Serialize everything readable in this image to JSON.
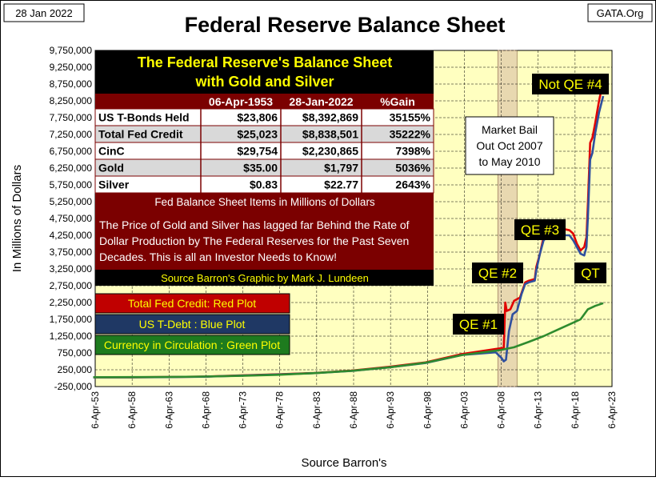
{
  "header": {
    "date": "28 Jan 2022",
    "title": "Federal Reserve Balance Sheet",
    "source_site": "GATA.Org"
  },
  "chart_data": {
    "type": "line",
    "ylabel": "In Millions of Dollars",
    "xlabel": "Source Barron's",
    "ylim": [
      -250000,
      9750000
    ],
    "yticks": [
      "9,750,000",
      "9,250,000",
      "8,750,000",
      "8,250,000",
      "7,750,000",
      "7,250,000",
      "6,750,000",
      "6,250,000",
      "5,750,000",
      "5,250,000",
      "4,750,000",
      "4,250,000",
      "3,750,000",
      "3,250,000",
      "2,750,000",
      "2,250,000",
      "1,750,000",
      "1,250,000",
      "750,000",
      "250,000",
      "-250,000"
    ],
    "xticks": [
      "6-Apr-53",
      "6-Apr-58",
      "6-Apr-63",
      "6-Apr-68",
      "6-Apr-73",
      "6-Apr-78",
      "6-Apr-83",
      "6-Apr-88",
      "6-Apr-93",
      "6-Apr-98",
      "6-Apr-03",
      "6-Apr-08",
      "6-Apr-13",
      "6-Apr-18",
      "6-Apr-23"
    ],
    "colors": {
      "total_fed_credit": "#e00000",
      "us_tdebt": "#2f4f9e",
      "currency": "#2e8b2e",
      "plot_bg": "#ffffc0",
      "shade": "#e8d8b0"
    },
    "shaded_region": {
      "from": 2007.8,
      "to": 2010.4
    },
    "series": [
      {
        "key": "red",
        "x": [
          1953,
          1958,
          1963,
          1968,
          1973,
          1978,
          1983,
          1988,
          1993,
          1998,
          2003,
          2007.5,
          2008.6,
          2008.8,
          2009,
          2009.5,
          2010,
          2010.8,
          2011.5,
          2012,
          2012.8,
          2013,
          2013.5,
          2014,
          2014.8,
          2015.5,
          2016.5,
          2017.5,
          2018,
          2018.5,
          2019,
          2019.5,
          2019.8,
          2020,
          2020.3,
          2020.6,
          2021,
          2021.5,
          2022.07
        ],
        "values": [
          25023,
          27000,
          33000,
          45000,
          80000,
          115000,
          155000,
          225000,
          335000,
          470000,
          720000,
          870000,
          900000,
          2250000,
          2000000,
          2050000,
          2300000,
          2400000,
          2850000,
          2900000,
          2950000,
          3300000,
          3700000,
          4200000,
          4450000,
          4450000,
          4450000,
          4400000,
          4300000,
          4000000,
          3800000,
          3900000,
          4200000,
          5200000,
          7000000,
          7150000,
          7600000,
          8250000,
          8838501
        ]
      },
      {
        "key": "blue",
        "x": [
          1953,
          1958,
          1963,
          1968,
          1973,
          1978,
          1983,
          1988,
          1993,
          1998,
          2003,
          2007.5,
          2008.3,
          2008.6,
          2008.9,
          2009.3,
          2009.8,
          2010.4,
          2011,
          2011.5,
          2012,
          2012.8,
          2013,
          2013.5,
          2014,
          2014.8,
          2015.5,
          2016.5,
          2017.5,
          2018,
          2018.5,
          2019,
          2019.5,
          2019.8,
          2020,
          2020.3,
          2020.6,
          2021,
          2021.5,
          2022.07
        ],
        "values": [
          23806,
          26000,
          31000,
          43000,
          76000,
          110000,
          150000,
          215000,
          320000,
          450000,
          690000,
          770000,
          600000,
          500000,
          550000,
          1400000,
          1900000,
          2000000,
          2500000,
          2800000,
          2850000,
          2900000,
          3200000,
          3700000,
          4100000,
          4250000,
          4250000,
          4250000,
          4250000,
          4100000,
          3900000,
          3700000,
          3650000,
          3900000,
          4800000,
          6500000,
          6700000,
          7300000,
          7900000,
          8392869
        ]
      },
      {
        "key": "green",
        "x": [
          1953,
          1958,
          1963,
          1968,
          1973,
          1978,
          1983,
          1988,
          1993,
          1998,
          2003,
          2008,
          2010,
          2012,
          2014,
          2016,
          2018,
          2019,
          2020,
          2021,
          2022.07
        ],
        "values": [
          29754,
          31000,
          36000,
          48000,
          70000,
          100000,
          150000,
          220000,
          320000,
          460000,
          690000,
          830000,
          920000,
          1080000,
          1250000,
          1450000,
          1650000,
          1750000,
          2050000,
          2150000,
          2230865
        ]
      }
    ],
    "annotations": {
      "qe1": "QE #1",
      "qe2": "QE #2",
      "qe3": "QE #3",
      "qt": "QT",
      "not_qe4": "Not QE #4",
      "market_bail": [
        "Market Bail",
        "Out Oct 2007",
        "to May 2010"
      ]
    },
    "legend": [
      {
        "label": "Total Fed Credit: Red Plot",
        "bg": "#c00000",
        "fg": "#ffff00"
      },
      {
        "label": "US T-Debt : Blue Plot",
        "bg": "#1f3864",
        "fg": "#ffff00"
      },
      {
        "label": "Currency in Circulation : Green Plot",
        "bg": "#1e7b1e",
        "fg": "#ffff00"
      }
    ],
    "table": {
      "title_line1": "The Federal Reserve's Balance Sheet",
      "title_line2": "with Gold and Silver",
      "headers": [
        "06-Apr-1953",
        "28-Jan-2022",
        "%Gain"
      ],
      "rows": [
        [
          "US T-Bonds Held",
          "$23,806",
          "$8,392,869",
          "35155%"
        ],
        [
          "Total Fed Credit",
          "$25,023",
          "$8,838,501",
          "35222%"
        ],
        [
          "CinC",
          "$29,754",
          "$2,230,865",
          "7398%"
        ],
        [
          "Gold",
          "$35.00",
          "$1,797",
          "5036%"
        ],
        [
          "Silver",
          "$0.83",
          "$22.77",
          "2643%"
        ]
      ],
      "note1": "Fed Balance Sheet Items in Millions of Dollars",
      "note2": "The Price of Gold and Silver has lagged far Behind the Rate of Dollar Production by The Federal Reserves for the Past Seven Decades.  This is all an Investor Needs to Know!",
      "credit": "Source Barron's    Graphic by Mark J. Lundeen"
    }
  }
}
